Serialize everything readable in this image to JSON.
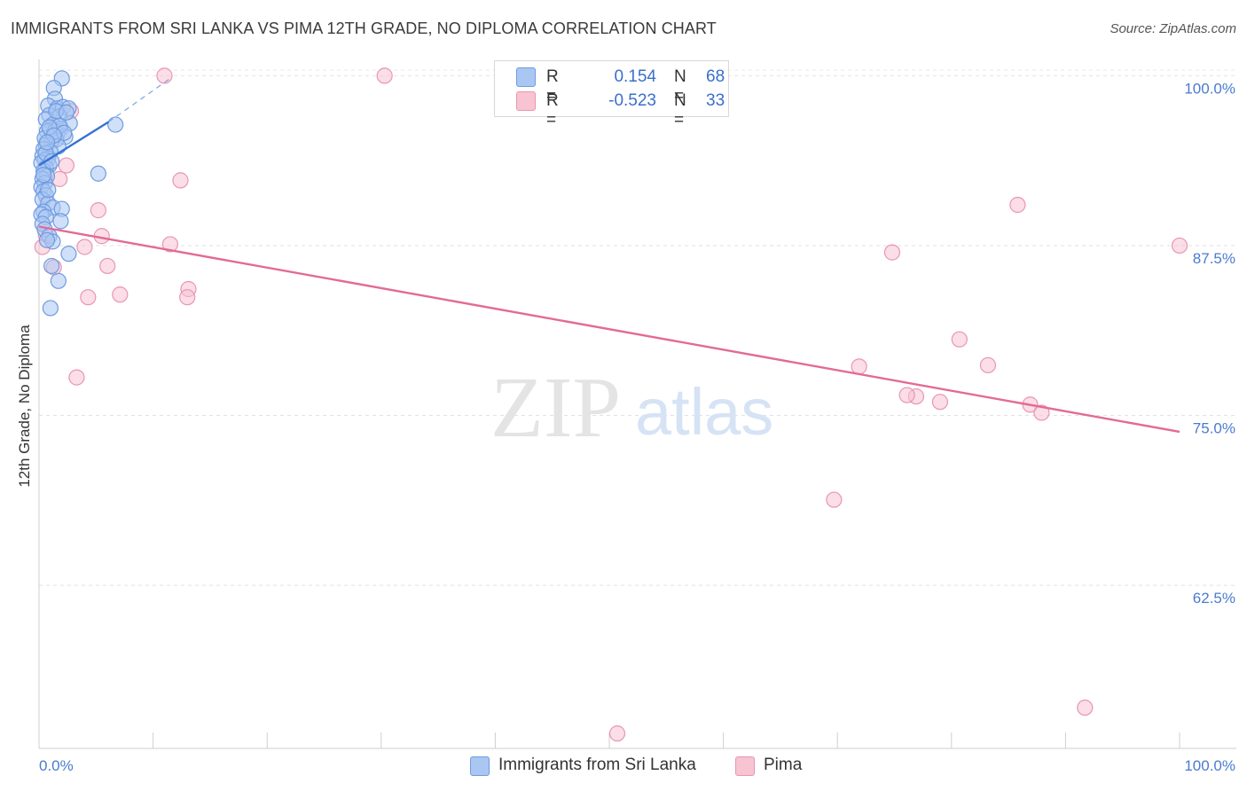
{
  "header": {
    "title": "IMMIGRANTS FROM SRI LANKA VS PIMA 12TH GRADE, NO DIPLOMA CORRELATION CHART",
    "source": "Source: ZipAtlas.com"
  },
  "watermark": {
    "zip": "ZIP",
    "atlas": "atlas"
  },
  "legend": {
    "rows": [
      {
        "r_key": "R =",
        "r_value": "0.154",
        "n_key": "N =",
        "n_value": "68",
        "color": "#a9c7f2",
        "border": "#6f9be0"
      },
      {
        "r_key": "R =",
        "r_value": "-0.523",
        "n_key": "N =",
        "n_value": "33",
        "color": "#f8c3d3",
        "border": "#e896b0"
      }
    ]
  },
  "bottom_legend": [
    {
      "label": "Immigrants from Sri Lanka",
      "color": "#a9c7f2",
      "border": "#6f9be0"
    },
    {
      "label": "Pima",
      "color": "#f8c3d3",
      "border": "#e896b0"
    }
  ],
  "chart_data": {
    "type": "scatter",
    "title": "IMMIGRANTS FROM SRI LANKA VS PIMA 12TH GRADE, NO DIPLOMA CORRELATION CHART",
    "ylabel": "12th Grade, No Diploma",
    "xlabel": "",
    "xlim": [
      0,
      100
    ],
    "ylim": [
      50.5,
      101.2
    ],
    "x_tick_labels": [
      {
        "value": 0,
        "label": "0.0%"
      },
      {
        "value": 100,
        "label": "100.0%"
      }
    ],
    "y_tick_labels": [
      {
        "value": 100,
        "label": "100.0%"
      },
      {
        "value": 87.5,
        "label": "87.5%"
      },
      {
        "value": 75,
        "label": "75.0%"
      },
      {
        "value": 62.5,
        "label": "62.5%"
      }
    ],
    "grid": true,
    "legend_position": "top-center",
    "series": [
      {
        "name": "Immigrants from Sri Lanka",
        "color": "#6f9be0",
        "fill": "#a9c7f2",
        "points": [
          [
            2.0,
            99.8
          ],
          [
            1.3,
            99.1
          ],
          [
            1.4,
            98.3
          ],
          [
            0.8,
            97.8
          ],
          [
            1.6,
            97.6
          ],
          [
            2.1,
            97.7
          ],
          [
            2.6,
            97.6
          ],
          [
            0.9,
            97.1
          ],
          [
            1.8,
            97.0
          ],
          [
            0.6,
            96.8
          ],
          [
            2.7,
            96.5
          ],
          [
            6.7,
            96.4
          ],
          [
            1.2,
            96.4
          ],
          [
            1.9,
            96.1
          ],
          [
            1.0,
            96.0
          ],
          [
            0.7,
            95.9
          ],
          [
            1.6,
            95.7
          ],
          [
            2.3,
            95.5
          ],
          [
            0.5,
            95.4
          ],
          [
            1.5,
            95.3
          ],
          [
            1.1,
            95.2
          ],
          [
            0.6,
            94.9
          ],
          [
            1.7,
            94.8
          ],
          [
            0.4,
            94.6
          ],
          [
            1.0,
            94.4
          ],
          [
            0.3,
            94.1
          ],
          [
            0.8,
            93.9
          ],
          [
            0.5,
            93.8
          ],
          [
            0.2,
            93.6
          ],
          [
            0.9,
            93.4
          ],
          [
            0.6,
            93.2
          ],
          [
            0.4,
            93.0
          ],
          [
            5.2,
            92.8
          ],
          [
            0.7,
            92.6
          ],
          [
            0.3,
            92.4
          ],
          [
            0.5,
            92.1
          ],
          [
            0.2,
            91.8
          ],
          [
            0.4,
            91.5
          ],
          [
            0.6,
            91.2
          ],
          [
            0.3,
            90.9
          ],
          [
            0.8,
            90.6
          ],
          [
            1.2,
            90.3
          ],
          [
            2.0,
            90.2
          ],
          [
            0.4,
            90.0
          ],
          [
            0.2,
            89.8
          ],
          [
            0.6,
            89.6
          ],
          [
            1.9,
            89.3
          ],
          [
            0.3,
            89.1
          ],
          [
            0.5,
            88.7
          ],
          [
            0.9,
            88.2
          ],
          [
            1.2,
            87.8
          ],
          [
            0.7,
            87.9
          ],
          [
            2.6,
            86.9
          ],
          [
            1.1,
            86.0
          ],
          [
            1.7,
            84.9
          ],
          [
            1.0,
            82.9
          ],
          [
            1.4,
            95.9
          ],
          [
            1.8,
            96.3
          ],
          [
            2.2,
            95.8
          ],
          [
            0.9,
            96.2
          ],
          [
            1.3,
            95.6
          ],
          [
            0.6,
            94.3
          ],
          [
            1.5,
            97.4
          ],
          [
            2.4,
            97.3
          ],
          [
            0.7,
            95.1
          ],
          [
            1.1,
            93.7
          ],
          [
            0.4,
            92.7
          ],
          [
            0.8,
            91.6
          ]
        ]
      },
      {
        "name": "Pima",
        "color": "#e896b0",
        "fill": "#f8c3d3",
        "points": [
          [
            11.0,
            100.0
          ],
          [
            30.3,
            100.0
          ],
          [
            2.8,
            97.4
          ],
          [
            2.4,
            93.4
          ],
          [
            1.8,
            92.4
          ],
          [
            12.4,
            92.3
          ],
          [
            5.2,
            90.1
          ],
          [
            0.6,
            88.3
          ],
          [
            5.5,
            88.2
          ],
          [
            4.0,
            87.4
          ],
          [
            11.5,
            87.6
          ],
          [
            0.3,
            87.4
          ],
          [
            6.0,
            86.0
          ],
          [
            1.3,
            85.9
          ],
          [
            13.1,
            84.3
          ],
          [
            7.1,
            83.9
          ],
          [
            4.3,
            83.7
          ],
          [
            13.0,
            83.7
          ],
          [
            3.3,
            77.8
          ],
          [
            85.8,
            90.5
          ],
          [
            74.8,
            87.0
          ],
          [
            100.0,
            87.5
          ],
          [
            80.7,
            80.6
          ],
          [
            83.2,
            78.7
          ],
          [
            71.9,
            78.6
          ],
          [
            76.9,
            76.4
          ],
          [
            76.1,
            76.5
          ],
          [
            79.0,
            76.0
          ],
          [
            86.9,
            75.8
          ],
          [
            87.9,
            75.2
          ],
          [
            69.7,
            68.8
          ],
          [
            50.7,
            51.6
          ],
          [
            91.7,
            53.5
          ]
        ]
      }
    ],
    "trend_lines": [
      {
        "series": "Immigrants from Sri Lanka",
        "x": [
          0.0,
          6.1
        ],
        "y": [
          93.4,
          96.6
        ],
        "style": "solid",
        "color": "#3472d4"
      },
      {
        "series": "Immigrants from Sri Lanka",
        "x": [
          6.1,
          11.5
        ],
        "y": [
          96.6,
          99.8
        ],
        "style": "dashed",
        "color": "#7aa4e4"
      },
      {
        "series": "Pima",
        "x": [
          0.0,
          100.0
        ],
        "y": [
          88.9,
          73.8
        ],
        "style": "solid",
        "color": "#e36a95"
      }
    ]
  }
}
